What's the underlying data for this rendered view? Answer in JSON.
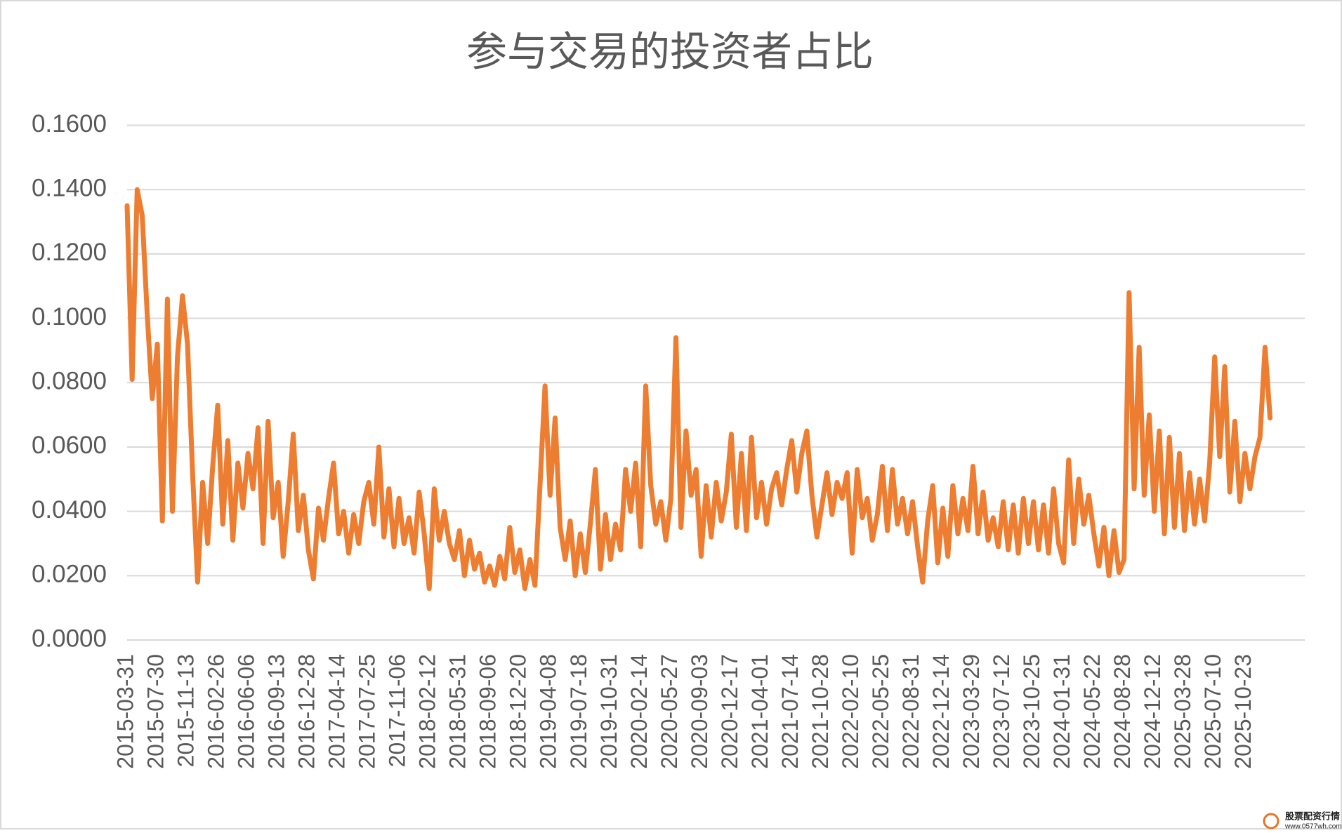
{
  "chart_data": {
    "type": "line",
    "title": "参与交易的投资者占比",
    "color": "#ed7d31",
    "ylim": [
      0,
      0.16
    ],
    "yticks": [
      {
        "value": 0,
        "label": "0.0000"
      },
      {
        "value": 0.02,
        "label": "0.0200"
      },
      {
        "value": 0.04,
        "label": "0.0400"
      },
      {
        "value": 0.06,
        "label": "0.0600"
      },
      {
        "value": 0.08,
        "label": "0.0800"
      },
      {
        "value": 0.1,
        "label": "0.1000"
      },
      {
        "value": 0.12,
        "label": "0.1200"
      },
      {
        "value": 0.14,
        "label": "0.1400"
      },
      {
        "value": 0.16,
        "label": "0.1600"
      }
    ],
    "grid": true,
    "categories": [
      "2015-03-31",
      null,
      null,
      null,
      null,
      null,
      "2015-07-30",
      null,
      null,
      null,
      null,
      null,
      "2015-11-13",
      null,
      null,
      null,
      null,
      null,
      "2016-02-26",
      null,
      null,
      null,
      null,
      null,
      "2016-06-06",
      null,
      null,
      null,
      null,
      null,
      "2016-09-13",
      null,
      null,
      null,
      null,
      null,
      "2016-12-28",
      null,
      null,
      null,
      null,
      null,
      "2017-04-14",
      null,
      null,
      null,
      null,
      null,
      "2017-07-25",
      null,
      null,
      null,
      null,
      null,
      "2017-11-06",
      null,
      null,
      null,
      null,
      null,
      "2018-02-12",
      null,
      null,
      null,
      null,
      null,
      "2018-05-31",
      null,
      null,
      null,
      null,
      null,
      "2018-09-06",
      null,
      null,
      null,
      null,
      null,
      "2018-12-20",
      null,
      null,
      null,
      null,
      null,
      "2019-04-08",
      null,
      null,
      null,
      null,
      null,
      "2019-07-18",
      null,
      null,
      null,
      null,
      null,
      "2019-10-31",
      null,
      null,
      null,
      null,
      null,
      "2020-02-14",
      null,
      null,
      null,
      null,
      null,
      "2020-05-27",
      null,
      null,
      null,
      null,
      null,
      "2020-09-03",
      null,
      null,
      null,
      null,
      null,
      "2020-12-17",
      null,
      null,
      null,
      null,
      null,
      "2021-04-01",
      null,
      null,
      null,
      null,
      null,
      "2021-07-14",
      null,
      null,
      null,
      null,
      null,
      "2021-10-28",
      null,
      null,
      null,
      null,
      null,
      "2022-02-10",
      null,
      null,
      null,
      null,
      null,
      "2022-05-25",
      null,
      null,
      null,
      null,
      null,
      "2022-08-31",
      null,
      null,
      null,
      null,
      null,
      "2022-12-14",
      null,
      null,
      null,
      null,
      null,
      "2023-03-29",
      null,
      null,
      null,
      null,
      null,
      "2023-07-12",
      null,
      null,
      null,
      null,
      null,
      "2023-10-25",
      null,
      null,
      null,
      null,
      null,
      "2024-01-31",
      null,
      null,
      null,
      null,
      null,
      "2024-05-22",
      null,
      null,
      null,
      null,
      null,
      "2024-08-28",
      null,
      null,
      null,
      null,
      null,
      "2024-12-12",
      null,
      null,
      null,
      null,
      null,
      "2025-03-28",
      null,
      null,
      null,
      null,
      null,
      "2025-07-10",
      null,
      null,
      null,
      null,
      null,
      "2025-10-23",
      null,
      null,
      null,
      null,
      null
    ],
    "values": [
      0.135,
      0.081,
      0.14,
      0.132,
      0.101,
      0.075,
      0.092,
      0.037,
      0.106,
      0.04,
      0.088,
      0.107,
      0.092,
      0.052,
      0.018,
      0.049,
      0.03,
      0.054,
      0.073,
      0.036,
      0.062,
      0.031,
      0.055,
      0.041,
      0.058,
      0.047,
      0.066,
      0.03,
      0.068,
      0.038,
      0.049,
      0.026,
      0.043,
      0.064,
      0.034,
      0.045,
      0.028,
      0.019,
      0.041,
      0.031,
      0.044,
      0.055,
      0.033,
      0.04,
      0.027,
      0.039,
      0.03,
      0.043,
      0.049,
      0.036,
      0.06,
      0.032,
      0.047,
      0.029,
      0.044,
      0.03,
      0.038,
      0.027,
      0.046,
      0.033,
      0.016,
      0.047,
      0.031,
      0.04,
      0.03,
      0.025,
      0.034,
      0.02,
      0.031,
      0.022,
      0.027,
      0.018,
      0.023,
      0.017,
      0.026,
      0.019,
      0.035,
      0.021,
      0.028,
      0.016,
      0.025,
      0.017,
      0.048,
      0.079,
      0.045,
      0.069,
      0.035,
      0.025,
      0.037,
      0.02,
      0.033,
      0.021,
      0.036,
      0.053,
      0.022,
      0.039,
      0.025,
      0.036,
      0.028,
      0.053,
      0.04,
      0.055,
      0.029,
      0.079,
      0.048,
      0.036,
      0.043,
      0.031,
      0.044,
      0.094,
      0.035,
      0.065,
      0.045,
      0.053,
      0.026,
      0.048,
      0.032,
      0.049,
      0.037,
      0.046,
      0.064,
      0.035,
      0.058,
      0.034,
      0.063,
      0.038,
      0.049,
      0.036,
      0.047,
      0.052,
      0.042,
      0.053,
      0.062,
      0.046,
      0.058,
      0.065,
      0.045,
      0.032,
      0.042,
      0.052,
      0.039,
      0.049,
      0.044,
      0.052,
      0.027,
      0.053,
      0.038,
      0.044,
      0.031,
      0.039,
      0.054,
      0.034,
      0.053,
      0.036,
      0.044,
      0.033,
      0.043,
      0.029,
      0.018,
      0.037,
      0.048,
      0.024,
      0.041,
      0.026,
      0.048,
      0.033,
      0.044,
      0.034,
      0.054,
      0.033,
      0.046,
      0.031,
      0.038,
      0.029,
      0.043,
      0.028,
      0.042,
      0.027,
      0.044,
      0.03,
      0.043,
      0.028,
      0.042,
      0.027,
      0.047,
      0.03,
      0.024,
      0.056,
      0.03,
      0.05,
      0.036,
      0.045,
      0.033,
      0.023,
      0.035,
      0.02,
      0.034,
      0.021,
      0.025,
      0.108,
      0.047,
      0.091,
      0.045,
      0.07,
      0.04,
      0.065,
      0.033,
      0.063,
      0.035,
      0.058,
      0.034,
      0.052,
      0.036,
      0.05,
      0.037,
      0.055,
      0.088,
      0.057,
      0.085,
      0.046,
      0.068,
      0.043,
      0.058,
      0.047,
      0.057,
      0.063,
      0.091,
      0.069
    ]
  },
  "watermark": {
    "name": "股票配资行情",
    "url": "www.0577wh.com"
  }
}
